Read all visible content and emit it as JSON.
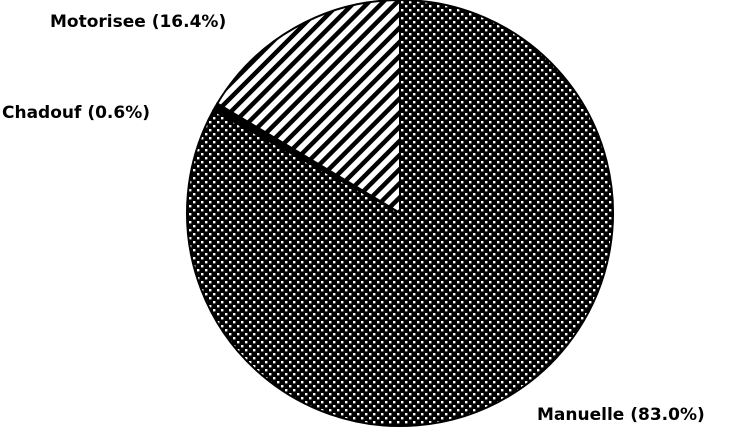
{
  "chart_data": {
    "type": "pie",
    "title": "",
    "start": "top",
    "direction": "clockwise",
    "slices": [
      {
        "label": "Manuelle (83.0%)",
        "name": "Manuelle",
        "value": 83.0,
        "fill": "dots"
      },
      {
        "label": "Chadouf (0.6%)",
        "name": "Chadouf",
        "value": 0.6,
        "fill": "solid"
      },
      {
        "label": "Motorisee (16.4%)",
        "name": "Motorisee",
        "value": 16.4,
        "fill": "hatch"
      }
    ],
    "colors": {
      "ink": "#000000",
      "background": "#ffffff"
    }
  }
}
